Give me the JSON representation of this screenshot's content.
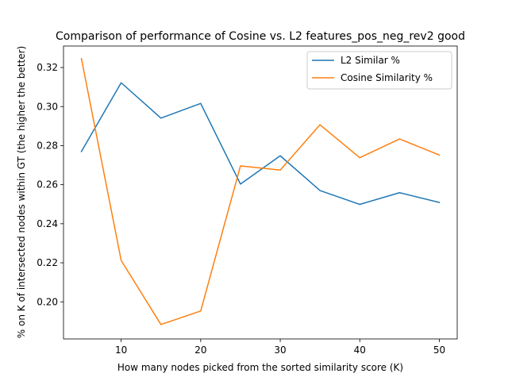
{
  "chart_data": {
    "type": "line",
    "title": "Comparison of performance of Cosine vs. L2 features_pos_neg_rev2 good",
    "xlabel": "How many nodes picked from the sorted similarity score (K)",
    "ylabel": "% on K of intersected nodes within GT (the higher the better)",
    "x": [
      5,
      10,
      15,
      20,
      25,
      30,
      35,
      40,
      45,
      50
    ],
    "xlim": [
      2.75,
      52.25
    ],
    "ylim": [
      0.181,
      0.331
    ],
    "xticks": [
      10,
      20,
      30,
      40,
      50
    ],
    "yticks": [
      0.2,
      0.22,
      0.24,
      0.26,
      0.28,
      0.3,
      0.32
    ],
    "ytick_labels": [
      "0.20",
      "0.22",
      "0.24",
      "0.26",
      "0.28",
      "0.30",
      "0.32"
    ],
    "legend_position": "upper right",
    "grid": false,
    "series": [
      {
        "name": "L2 Similar %",
        "color": "#1f77b4",
        "values": [
          0.277,
          0.3122,
          0.2941,
          0.3016,
          0.2603,
          0.2748,
          0.257,
          0.2499,
          0.2559,
          0.2509
        ]
      },
      {
        "name": "Cosine Similarity %",
        "color": "#ff7f0e",
        "values": [
          0.3246,
          0.2212,
          0.1884,
          0.1953,
          0.2696,
          0.2675,
          0.2907,
          0.2738,
          0.2834,
          0.2752
        ]
      }
    ]
  }
}
